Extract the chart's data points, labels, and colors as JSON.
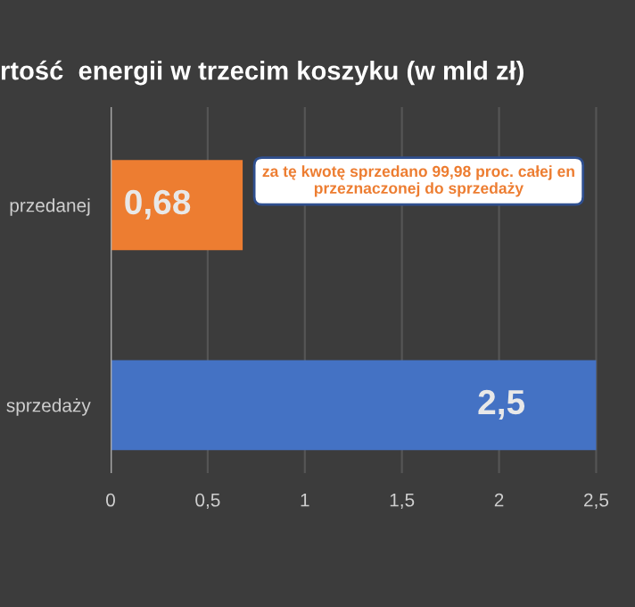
{
  "chart_data": {
    "type": "bar",
    "orientation": "horizontal",
    "title": "rtość  energii w trzecim koszyku (w mld zł)",
    "categories": [
      "przedanej",
      "sprzedaży"
    ],
    "values": [
      0.68,
      2.5
    ],
    "colors": [
      "#ed7d31",
      "#4472c4"
    ],
    "value_labels": [
      "0,68",
      "2,5"
    ],
    "xlim": [
      0,
      2.7
    ],
    "xticks": [
      0,
      {
        "value": 0.5,
        "label": "0,5"
      },
      1,
      {
        "value": 1.5,
        "label": "1,5"
      },
      2,
      {
        "value": 2.5,
        "label": "2,5"
      }
    ],
    "grid": "x",
    "legend": false,
    "annotations": [
      {
        "text": "za tę kwotę sprzedano 99,98 proc. całej en\nprzeznaczonej do sprzedaży",
        "x": 0.68,
        "y": "przedanej"
      }
    ]
  }
}
